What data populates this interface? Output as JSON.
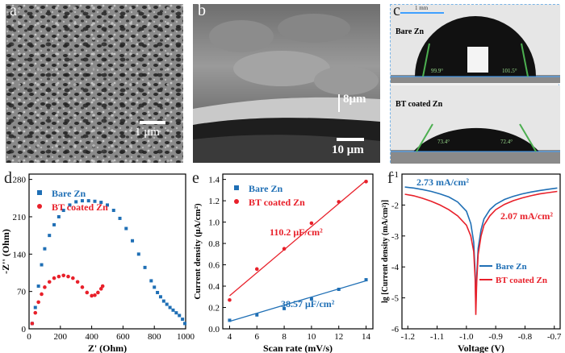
{
  "panel_letters": {
    "a": "a",
    "b": "b",
    "c": "c",
    "d": "d",
    "e": "e",
    "f": "f"
  },
  "panel_a": {
    "scale_bar": "1 μm"
  },
  "panel_b": {
    "thickness": "8μm",
    "scale_bar": "10 μm"
  },
  "panel_c": {
    "scale_bar": "1 mm",
    "top": {
      "label": "Bare Zn",
      "angle_left": "99.9°",
      "angle_right": "101.5°"
    },
    "bottom": {
      "label": "BT coated Zn",
      "angle_left": "73.4°",
      "angle_right": "72.4°"
    }
  },
  "colors": {
    "bare": "#1f6fb5",
    "bt": "#e8202a"
  },
  "chart_data": [
    {
      "type": "scatter",
      "panel": "d",
      "xlabel": "Z' (Ohm)",
      "ylabel": "-Z'' (Ohm)",
      "xlim": [
        0,
        1000
      ],
      "ylim": [
        0,
        290
      ],
      "xticks": [
        "0",
        "200",
        "400",
        "600",
        "800",
        "1000"
      ],
      "yticks": [
        "0",
        "70",
        "140",
        "210",
        "280"
      ],
      "legend": "top-left",
      "series": [
        {
          "name": "Bare Zn",
          "x": [
            20,
            40,
            60,
            80,
            100,
            130,
            160,
            190,
            220,
            260,
            300,
            340,
            380,
            420,
            460,
            500,
            540,
            580,
            620,
            660,
            700,
            740,
            780,
            800,
            820,
            840,
            860,
            880,
            900,
            920,
            940,
            960,
            980,
            995
          ],
          "y": [
            10,
            40,
            80,
            120,
            150,
            175,
            195,
            210,
            222,
            232,
            238,
            240,
            240,
            239,
            237,
            232,
            222,
            207,
            188,
            165,
            140,
            115,
            90,
            78,
            68,
            60,
            52,
            46,
            40,
            35,
            30,
            25,
            18,
            10
          ]
        },
        {
          "name": "BT coated Zn",
          "x": [
            20,
            40,
            60,
            80,
            100,
            130,
            160,
            190,
            220,
            250,
            280,
            310,
            340,
            370,
            400,
            420,
            440,
            460,
            470
          ],
          "y": [
            10,
            30,
            50,
            65,
            78,
            88,
            95,
            98,
            100,
            98,
            95,
            88,
            78,
            68,
            62,
            63,
            68,
            75,
            80
          ]
        }
      ]
    },
    {
      "type": "scatter",
      "panel": "e",
      "xlabel": "Scan rate (mV/s)",
      "ylabel": "Current density (μA/cm²)",
      "xlim": [
        3.5,
        14.5
      ],
      "ylim": [
        0,
        1.45
      ],
      "xticks": [
        "4",
        "6",
        "8",
        "10",
        "12",
        "14"
      ],
      "yticks": [
        "0.0",
        "0.2",
        "0.4",
        "0.6",
        "0.8",
        "1.0",
        "1.2",
        "1.4"
      ],
      "legend": "top-left",
      "series": [
        {
          "name": "Bare Zn",
          "x": [
            4,
            6,
            8,
            10,
            12,
            14
          ],
          "y": [
            0.08,
            0.13,
            0.19,
            0.28,
            0.37,
            0.46
          ],
          "fit": [
            [
              4,
              0.07
            ],
            [
              14,
              0.45
            ]
          ],
          "annotation": "38.57 μF/cm²"
        },
        {
          "name": "BT coated Zn",
          "x": [
            4,
            6,
            8,
            10,
            12,
            14
          ],
          "y": [
            0.27,
            0.56,
            0.75,
            0.99,
            1.19,
            1.38
          ],
          "fit": [
            [
              4,
              0.31
            ],
            [
              14,
              1.39
            ]
          ],
          "annotation": "110.2 μF/cm²"
        }
      ]
    },
    {
      "type": "line",
      "panel": "f",
      "xlabel": "Voltage (V)",
      "ylabel": "lg [Current density (mA/cm²)]",
      "xlim": [
        -1.22,
        -0.68
      ],
      "ylim": [
        -6.0,
        -1.0
      ],
      "xticks": [
        "-1.2",
        "-1.1",
        "-1.0",
        "-0.9",
        "-0.8",
        "-0.7"
      ],
      "yticks": [
        "-6",
        "-5",
        "-4",
        "-3",
        "-2",
        "-1"
      ],
      "legend": "bottom-right",
      "series": [
        {
          "name": "Bare Zn",
          "x": [
            -1.21,
            -1.18,
            -1.15,
            -1.12,
            -1.09,
            -1.06,
            -1.03,
            -1.0,
            -0.985,
            -0.975,
            -0.97,
            -0.968,
            -0.965,
            -0.96,
            -0.95,
            -0.94,
            -0.92,
            -0.9,
            -0.87,
            -0.84,
            -0.81,
            -0.78,
            -0.75,
            -0.72,
            -0.69
          ],
          "y": [
            -1.42,
            -1.45,
            -1.5,
            -1.56,
            -1.64,
            -1.74,
            -1.9,
            -2.2,
            -2.6,
            -3.2,
            -4.2,
            -5.3,
            -4.3,
            -3.4,
            -2.8,
            -2.45,
            -2.15,
            -1.98,
            -1.82,
            -1.72,
            -1.64,
            -1.58,
            -1.53,
            -1.49,
            -1.45
          ],
          "annotation": "2.73 mA/cm²"
        },
        {
          "name": "BT coated Zn",
          "x": [
            -1.21,
            -1.18,
            -1.15,
            -1.12,
            -1.09,
            -1.06,
            -1.03,
            -1.0,
            -0.985,
            -0.975,
            -0.97,
            -0.968,
            -0.965,
            -0.96,
            -0.95,
            -0.94,
            -0.92,
            -0.9,
            -0.87,
            -0.84,
            -0.81,
            -0.78,
            -0.75,
            -0.72,
            -0.69
          ],
          "y": [
            -1.65,
            -1.7,
            -1.78,
            -1.88,
            -2.0,
            -2.15,
            -2.35,
            -2.65,
            -3.0,
            -3.5,
            -4.4,
            -5.55,
            -4.5,
            -3.6,
            -3.0,
            -2.65,
            -2.35,
            -2.15,
            -1.98,
            -1.86,
            -1.77,
            -1.7,
            -1.64,
            -1.6,
            -1.56
          ],
          "annotation": "2.07 mA/cm²"
        }
      ]
    }
  ]
}
